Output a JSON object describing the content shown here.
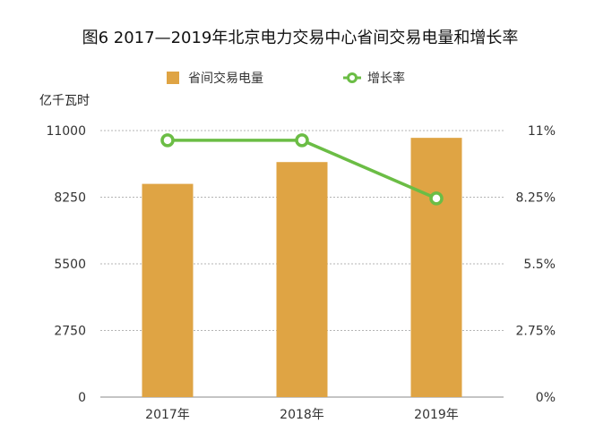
{
  "chart_data": {
    "type": "bar",
    "title": "图6 2017—2019年北京电力交易中心省间交易电量和增长率",
    "y_left_unit": "亿千瓦时",
    "categories": [
      "2017年",
      "2018年",
      "2019年"
    ],
    "series": [
      {
        "name": "省间交易电量",
        "type": "bar",
        "axis": "left",
        "values": [
          8800,
          9700,
          10700
        ]
      },
      {
        "name": "增长率",
        "type": "line",
        "axis": "right",
        "values": [
          10.6,
          10.6,
          8.2
        ]
      }
    ],
    "y_left": {
      "ylim": [
        0,
        11000
      ],
      "ticks": [
        "0",
        "2750",
        "5500",
        "8250",
        "11000"
      ]
    },
    "y_right": {
      "ylim": [
        0,
        11
      ],
      "ticks": [
        "0%",
        "2.75%",
        "5.5%",
        "8.25%",
        "11%"
      ]
    },
    "grid": true,
    "legend_position": "top",
    "colors": {
      "bar": "#dfa444",
      "line": "#6bbd45",
      "marker_fill": "#ffffff"
    }
  }
}
